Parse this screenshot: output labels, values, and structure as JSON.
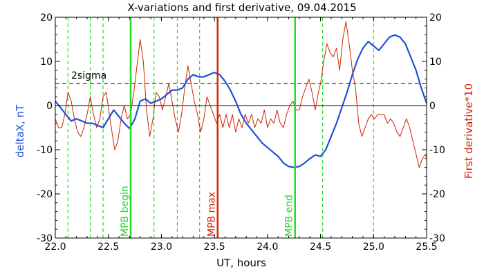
{
  "chart_data": {
    "type": "line",
    "title": "X-variations and first derivative, 09.04.2015",
    "xlabel": "UT, hours",
    "ylabel_left": "deltaX, nT",
    "ylabel_right": "First derivative*10",
    "xlim": [
      22.0,
      25.5
    ],
    "ylim": [
      -30,
      20
    ],
    "x_ticks": [
      22.0,
      22.5,
      23.0,
      23.5,
      24.0,
      24.5,
      25.0,
      25.5
    ],
    "x_tick_labels": [
      "22.0",
      "22.5",
      "23.0",
      "23.5",
      "24.0",
      "24.5",
      "25.0",
      "25.5"
    ],
    "y_ticks": [
      20,
      10,
      0,
      -10,
      -20,
      -30
    ],
    "y_tick_labels": [
      "20",
      "10",
      "0",
      "-10",
      "-20",
      "-30"
    ],
    "threshold": {
      "label": "2sigma",
      "value": 5
    },
    "zero_line": 0,
    "dashed_verticals": [
      22.12,
      22.33,
      22.45,
      22.93,
      23.15,
      23.36,
      24.52,
      25.0
    ],
    "markers": [
      {
        "label": "MPB begin",
        "x": 22.71,
        "color": "#22dd22"
      },
      {
        "label": "MPB max",
        "x": 23.53,
        "color": "#dd2200"
      },
      {
        "label": "MPB end",
        "x": 24.26,
        "color": "#22dd22"
      }
    ],
    "series": [
      {
        "color": "#1f4fd8",
        "points": [
          [
            22.0,
            1.0
          ],
          [
            22.05,
            -0.5
          ],
          [
            22.1,
            -2.0
          ],
          [
            22.15,
            -3.5
          ],
          [
            22.2,
            -3.0
          ],
          [
            22.25,
            -3.5
          ],
          [
            22.3,
            -4.0
          ],
          [
            22.35,
            -4.0
          ],
          [
            22.4,
            -4.5
          ],
          [
            22.45,
            -5.0
          ],
          [
            22.5,
            -3.0
          ],
          [
            22.55,
            -1.0
          ],
          [
            22.6,
            -2.5
          ],
          [
            22.65,
            -4.0
          ],
          [
            22.7,
            -5.2
          ],
          [
            22.75,
            -3.0
          ],
          [
            22.8,
            1.0
          ],
          [
            22.85,
            1.5
          ],
          [
            22.9,
            0.5
          ],
          [
            22.95,
            1.0
          ],
          [
            23.0,
            1.5
          ],
          [
            23.05,
            2.5
          ],
          [
            23.1,
            3.5
          ],
          [
            23.15,
            3.5
          ],
          [
            23.2,
            4.0
          ],
          [
            23.25,
            6.0
          ],
          [
            23.3,
            7.0
          ],
          [
            23.35,
            6.5
          ],
          [
            23.4,
            6.5
          ],
          [
            23.45,
            7.0
          ],
          [
            23.5,
            7.5
          ],
          [
            23.55,
            7.0
          ],
          [
            23.6,
            5.5
          ],
          [
            23.65,
            3.5
          ],
          [
            23.7,
            1.0
          ],
          [
            23.75,
            -2.0
          ],
          [
            23.8,
            -4.0
          ],
          [
            23.85,
            -5.5
          ],
          [
            23.9,
            -7.0
          ],
          [
            23.95,
            -8.5
          ],
          [
            24.0,
            -9.5
          ],
          [
            24.05,
            -10.5
          ],
          [
            24.1,
            -11.5
          ],
          [
            24.15,
            -13.0
          ],
          [
            24.2,
            -13.8
          ],
          [
            24.25,
            -14.0
          ],
          [
            24.3,
            -13.8
          ],
          [
            24.35,
            -13.0
          ],
          [
            24.4,
            -12.0
          ],
          [
            24.45,
            -11.2
          ],
          [
            24.5,
            -11.5
          ],
          [
            24.55,
            -10.0
          ],
          [
            24.6,
            -7.0
          ],
          [
            24.65,
            -4.0
          ],
          [
            24.7,
            -0.5
          ],
          [
            24.75,
            3.0
          ],
          [
            24.8,
            7.0
          ],
          [
            24.85,
            10.5
          ],
          [
            24.9,
            13.0
          ],
          [
            24.95,
            14.5
          ],
          [
            25.0,
            13.5
          ],
          [
            25.05,
            12.5
          ],
          [
            25.1,
            14.0
          ],
          [
            25.15,
            15.5
          ],
          [
            25.2,
            16.0
          ],
          [
            25.25,
            15.5
          ],
          [
            25.3,
            14.0
          ],
          [
            25.35,
            11.0
          ],
          [
            25.4,
            8.0
          ],
          [
            25.45,
            4.0
          ],
          [
            25.5,
            0.5
          ]
        ]
      },
      {
        "color": "#cc2200",
        "points": [
          [
            22.0,
            -3.0
          ],
          [
            22.03,
            -5.0
          ],
          [
            22.06,
            -5.0
          ],
          [
            22.09,
            -2.0
          ],
          [
            22.12,
            3.0
          ],
          [
            22.15,
            1.0
          ],
          [
            22.18,
            -3.0
          ],
          [
            22.21,
            -6.0
          ],
          [
            22.24,
            -7.0
          ],
          [
            22.27,
            -5.0
          ],
          [
            22.3,
            -2.0
          ],
          [
            22.33,
            2.0
          ],
          [
            22.36,
            -2.0
          ],
          [
            22.39,
            -5.0
          ],
          [
            22.42,
            -3.0
          ],
          [
            22.45,
            2.0
          ],
          [
            22.48,
            3.0
          ],
          [
            22.51,
            -2.0
          ],
          [
            22.54,
            -7.0
          ],
          [
            22.56,
            -10.0
          ],
          [
            22.59,
            -8.0
          ],
          [
            22.62,
            -3.0
          ],
          [
            22.65,
            0.0
          ],
          [
            22.68,
            -3.0
          ],
          [
            22.71,
            -2.0
          ],
          [
            22.74,
            3.0
          ],
          [
            22.77,
            9.0
          ],
          [
            22.8,
            15.0
          ],
          [
            22.83,
            10.0
          ],
          [
            22.86,
            -1.0
          ],
          [
            22.89,
            -7.0
          ],
          [
            22.92,
            -3.0
          ],
          [
            22.95,
            3.0
          ],
          [
            22.98,
            2.0
          ],
          [
            23.01,
            -1.0
          ],
          [
            23.04,
            2.0
          ],
          [
            23.07,
            5.0
          ],
          [
            23.1,
            1.0
          ],
          [
            23.13,
            -3.0
          ],
          [
            23.16,
            -6.0
          ],
          [
            23.19,
            -2.0
          ],
          [
            23.22,
            4.0
          ],
          [
            23.25,
            9.0
          ],
          [
            23.28,
            5.0
          ],
          [
            23.31,
            1.0
          ],
          [
            23.34,
            -2.0
          ],
          [
            23.37,
            -6.0
          ],
          [
            23.4,
            -3.0
          ],
          [
            23.43,
            2.0
          ],
          [
            23.46,
            0.0
          ],
          [
            23.49,
            -2.0
          ],
          [
            23.52,
            -4.0
          ],
          [
            23.55,
            -2.0
          ],
          [
            23.58,
            -5.0
          ],
          [
            23.61,
            -2.0
          ],
          [
            23.64,
            -5.0
          ],
          [
            23.67,
            -2.0
          ],
          [
            23.7,
            -6.0
          ],
          [
            23.73,
            -3.0
          ],
          [
            23.76,
            -5.0
          ],
          [
            23.79,
            -2.0
          ],
          [
            23.82,
            -4.0
          ],
          [
            23.85,
            -2.0
          ],
          [
            23.88,
            -5.0
          ],
          [
            23.91,
            -3.0
          ],
          [
            23.94,
            -4.0
          ],
          [
            23.97,
            -1.0
          ],
          [
            24.0,
            -5.0
          ],
          [
            24.03,
            -3.0
          ],
          [
            24.06,
            -4.0
          ],
          [
            24.09,
            -1.0
          ],
          [
            24.12,
            -4.0
          ],
          [
            24.15,
            -5.0
          ],
          [
            24.18,
            -2.0
          ],
          [
            24.21,
            0.0
          ],
          [
            24.24,
            1.0
          ],
          [
            24.27,
            -1.0
          ],
          [
            24.3,
            -1.0
          ],
          [
            24.33,
            2.0
          ],
          [
            24.36,
            4.0
          ],
          [
            24.39,
            6.0
          ],
          [
            24.42,
            3.0
          ],
          [
            24.45,
            -1.0
          ],
          [
            24.48,
            3.0
          ],
          [
            24.5,
            5.0
          ],
          [
            24.53,
            10.0
          ],
          [
            24.56,
            14.0
          ],
          [
            24.59,
            12.0
          ],
          [
            24.62,
            11.0
          ],
          [
            24.65,
            13.0
          ],
          [
            24.68,
            8.0
          ],
          [
            24.71,
            15.0
          ],
          [
            24.74,
            19.0
          ],
          [
            24.77,
            14.0
          ],
          [
            24.8,
            8.0
          ],
          [
            24.83,
            4.0
          ],
          [
            24.86,
            -4.0
          ],
          [
            24.89,
            -7.0
          ],
          [
            24.92,
            -5.0
          ],
          [
            24.95,
            -3.0
          ],
          [
            24.98,
            -2.0
          ],
          [
            25.01,
            -3.0
          ],
          [
            25.04,
            -2.0
          ],
          [
            25.07,
            -2.0
          ],
          [
            25.1,
            -2.0
          ],
          [
            25.13,
            -4.0
          ],
          [
            25.16,
            -3.0
          ],
          [
            25.19,
            -4.0
          ],
          [
            25.22,
            -6.0
          ],
          [
            25.25,
            -7.0
          ],
          [
            25.28,
            -5.0
          ],
          [
            25.31,
            -3.0
          ],
          [
            25.34,
            -5.0
          ],
          [
            25.37,
            -8.0
          ],
          [
            25.4,
            -11.0
          ],
          [
            25.43,
            -14.0
          ],
          [
            25.46,
            -12.0
          ],
          [
            25.49,
            -11.0
          ],
          [
            25.5,
            -12.0
          ]
        ]
      }
    ]
  }
}
